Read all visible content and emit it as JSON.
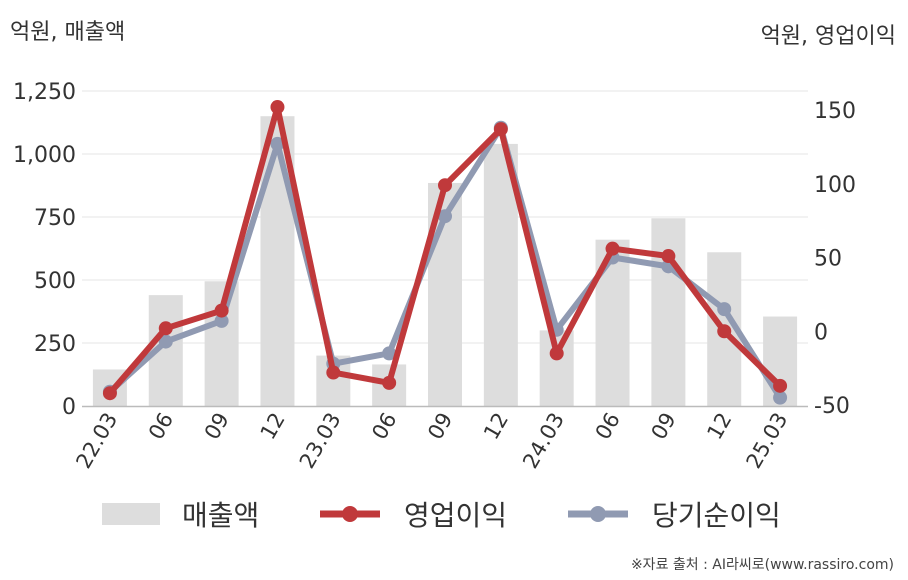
{
  "titles": {
    "left_axis": "억원, 매출액",
    "right_axis": "억원, 영업이익"
  },
  "source": "※자료 출처 : AI라씨로(www.rassiro.com)",
  "colors": {
    "bar": "#dddddd",
    "operating_profit": "#c0393b",
    "net_profit": "#909ab2",
    "grid": "#e6e6e6",
    "axis": "#bbbbbb",
    "text": "#333333"
  },
  "chart_data": {
    "type": "bar",
    "categories": [
      "22.03",
      "06",
      "09",
      "12",
      "23.03",
      "06",
      "09",
      "12",
      "24.03",
      "06",
      "09",
      "12",
      "25.03"
    ],
    "ylim_left": [
      0,
      1250
    ],
    "yticks_left": [
      0,
      250,
      500,
      750,
      1000,
      1250
    ],
    "ytick_labels_left": [
      "0",
      "250",
      "500",
      "750",
      "1,000",
      "1,250"
    ],
    "ylim_right": [
      -50,
      150
    ],
    "yticks_right": [
      -50,
      0,
      50,
      100,
      150
    ],
    "ytick_labels_right": [
      "-50",
      "0",
      "50",
      "100",
      "150"
    ],
    "grid": true,
    "legend_position": "bottom",
    "series": [
      {
        "name": "매출액",
        "type": "bar",
        "axis": "left",
        "values": [
          145,
          440,
          495,
          1150,
          200,
          165,
          885,
          1040,
          300,
          660,
          745,
          610,
          355
        ]
      },
      {
        "name": "영업이익",
        "type": "line",
        "axis": "right",
        "values": [
          -42,
          2,
          14,
          152,
          -28,
          -35,
          99,
          137,
          -15,
          56,
          51,
          0,
          -37
        ]
      },
      {
        "name": "당기순이익",
        "type": "line",
        "axis": "right",
        "values": [
          -41,
          -7,
          7,
          127,
          -22,
          -15,
          78,
          138,
          1,
          50,
          44,
          15,
          -45
        ]
      }
    ]
  }
}
